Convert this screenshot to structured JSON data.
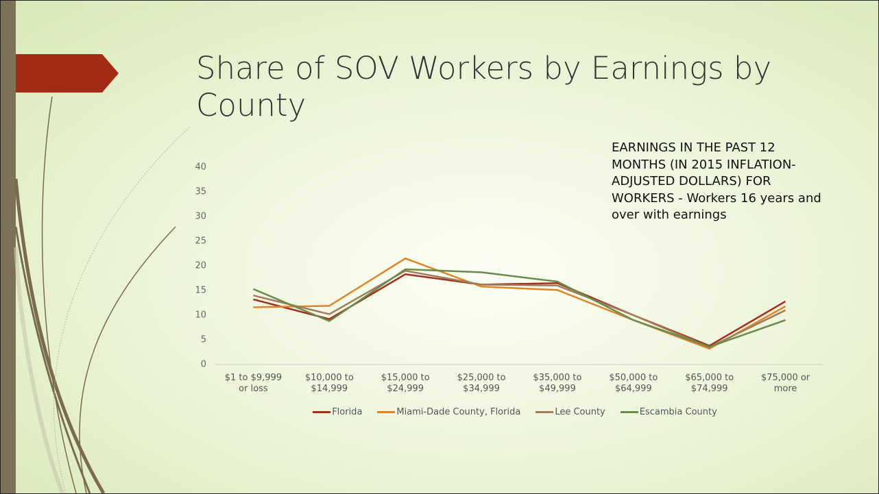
{
  "chart_data": {
    "type": "line",
    "title": "Share of SOV Workers by Earnings by County",
    "annotation": "EARNINGS IN THE PAST 12 MONTHS (IN 2015 INFLATION-ADJUSTED DOLLARS) FOR WORKERS - Workers 16 years and over with earnings",
    "categories": [
      "$1 to $9,999 or loss",
      "$10,000 to $14,999",
      "$15,000 to $24,999",
      "$25,000 to $34,999",
      "$35,000 to $49,999",
      "$50,000 to $64,999",
      "$65,000 to $74,999",
      "$75,000 or more"
    ],
    "series": [
      {
        "name": "Florida",
        "color": "#a3301b",
        "values": [
          13.2,
          9.2,
          18.3,
          16.2,
          16.5,
          10.0,
          3.8,
          12.8
        ]
      },
      {
        "name": "Miami-Dade County, Florida",
        "color": "#e08327",
        "values": [
          11.6,
          11.9,
          21.5,
          15.8,
          15.1,
          9.0,
          3.2,
          11.8
        ]
      },
      {
        "name": "Lee County",
        "color": "#9e7d58",
        "values": [
          14.0,
          10.2,
          19.0,
          16.2,
          16.0,
          10.0,
          3.5,
          11.0
        ]
      },
      {
        "name": "Escambia County",
        "color": "#6b8a4c",
        "values": [
          15.3,
          8.8,
          19.3,
          18.7,
          16.8,
          9.0,
          3.6,
          9.0
        ]
      }
    ],
    "ylim": [
      0,
      40
    ],
    "yticks": [
      0,
      5,
      10,
      15,
      20,
      25,
      30,
      35,
      40
    ],
    "grid": false,
    "legend": "bottom"
  }
}
